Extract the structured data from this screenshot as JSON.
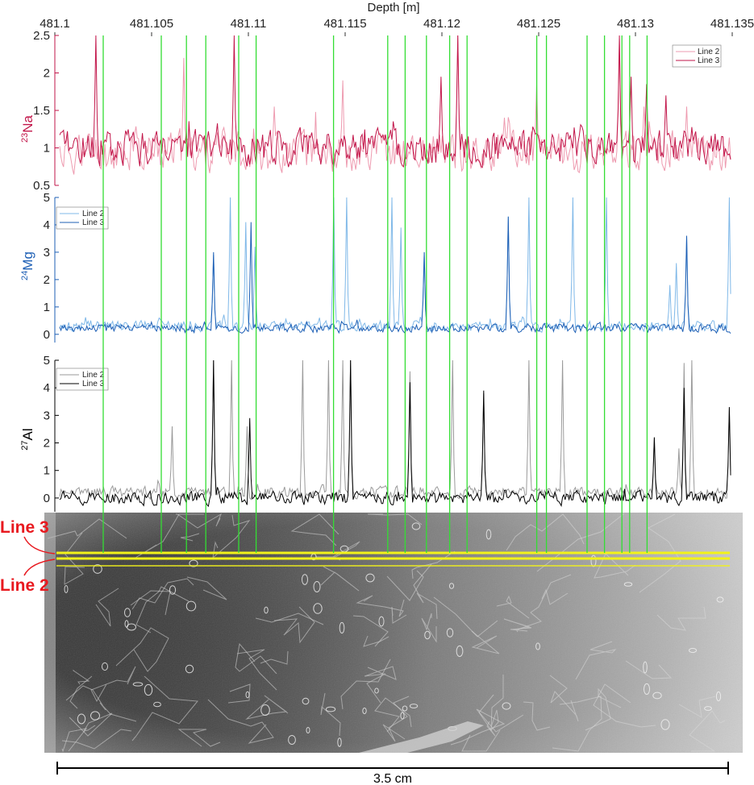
{
  "colors": {
    "na_line2": "#ee9bb0",
    "na_line3": "#c2164a",
    "mg_line2": "#7fb8e8",
    "mg_line3": "#1d5fb5",
    "al_line2": "#9a9a9a",
    "al_line3": "#000000",
    "event_lines": "#33dd33",
    "laser_tracks": "#f2f21a",
    "callout": "#e8191f"
  },
  "image_panel": {
    "description": "ice-core thin section with grain boundaries and bubbles",
    "line_labels": [
      "Line 3",
      "Line 2"
    ]
  },
  "scale_bar": {
    "label": "3.5 cm"
  },
  "chart_data": [
    {
      "type": "line",
      "title": "",
      "xlabel": "Depth [m]",
      "ylabel_main": "Na",
      "ylabel_sup": "23",
      "xlim": [
        481.1,
        481.135
      ],
      "ylim": [
        0.5,
        2.5
      ],
      "x_ticks": [
        "481.1",
        "481.105",
        "481.11",
        "481.115",
        "481.12",
        "481.125",
        "481.13",
        "481.135"
      ],
      "y_ticks": [
        "0.5",
        "1",
        "1.5",
        "2",
        "2.5"
      ],
      "y_tick_values": [
        0.5,
        1,
        1.5,
        2,
        2.5
      ],
      "legend": [
        "Line 2",
        "Line 3"
      ],
      "legend_position": "top-right",
      "series": [
        {
          "name": "Line 2",
          "baseline": 0.95,
          "noise": 0.17,
          "spikes": [
            [
              481.1065,
              2.2
            ],
            [
              481.1112,
              1.55
            ],
            [
              481.1148,
              1.9
            ],
            [
              481.1208,
              2.5
            ],
            [
              481.1249,
              1.85
            ],
            [
              481.1292,
              2.45
            ],
            [
              481.1305,
              1.55
            ],
            [
              481.1327,
              1.55
            ]
          ]
        },
        {
          "name": "Line 3",
          "baseline": 1.0,
          "noise": 0.14,
          "spikes": [
            [
              481.1019,
              2.5
            ],
            [
              481.1091,
              2.5
            ],
            [
              481.1199,
              1.95
            ],
            [
              481.1208,
              2.5
            ],
            [
              481.1292,
              2.5
            ],
            [
              481.1298,
              1.95
            ],
            [
              481.1306,
              1.85
            ],
            [
              481.1316,
              1.7
            ]
          ]
        }
      ]
    },
    {
      "type": "line",
      "title": "",
      "ylabel_main": "Mg",
      "ylabel_sup": "24",
      "xlim": [
        481.1,
        481.135
      ],
      "ylim": [
        -0.3,
        5
      ],
      "y_ticks": [
        "0",
        "1",
        "2",
        "3",
        "4",
        "5"
      ],
      "y_tick_values": [
        0,
        1,
        2,
        3,
        4,
        5
      ],
      "legend": [
        "Line 2",
        "Line 3"
      ],
      "legend_position": "top-left",
      "series": [
        {
          "name": "Line 2",
          "baseline": 0.3,
          "noise": 0.12,
          "spikes": [
            [
              481.108,
              2.9
            ],
            [
              481.1089,
              5.0
            ],
            [
              481.1097,
              4.1
            ],
            [
              481.1102,
              3.2
            ],
            [
              481.1143,
              5.0
            ],
            [
              481.115,
              5.0
            ],
            [
              481.1173,
              5.0
            ],
            [
              481.1178,
              3.9
            ],
            [
              481.119,
              3.0
            ],
            [
              481.1234,
              4.3
            ],
            [
              481.1245,
              5.0
            ],
            [
              481.1268,
              5.0
            ],
            [
              481.1285,
              5.0
            ],
            [
              481.1318,
              1.8
            ],
            [
              481.1322,
              2.6
            ],
            [
              481.1327,
              3.6
            ],
            [
              481.1349,
              5.0
            ]
          ]
        },
        {
          "name": "Line 3",
          "baseline": 0.22,
          "noise": 0.1,
          "spikes": [
            [
              481.108,
              3.0
            ],
            [
              481.11,
              4.1
            ],
            [
              481.119,
              3.0
            ],
            [
              481.1234,
              4.3
            ],
            [
              481.1327,
              3.6
            ]
          ]
        }
      ]
    },
    {
      "type": "line",
      "title": "",
      "ylabel_main": "Al",
      "ylabel_sup": "27",
      "xlim": [
        481.1,
        481.135
      ],
      "ylim": [
        -0.5,
        5
      ],
      "y_ticks": [
        "0",
        "1",
        "2",
        "3",
        "4",
        "5"
      ],
      "y_tick_values": [
        0,
        1,
        2,
        3,
        4,
        5
      ],
      "legend": [
        "Line 2",
        "Line 3"
      ],
      "legend_position": "top-left",
      "series": [
        {
          "name": "Line 2",
          "baseline": 0.2,
          "noise": 0.13,
          "spikes": [
            [
              481.1059,
              2.6
            ],
            [
              481.108,
              5.0
            ],
            [
              481.109,
              5.0
            ],
            [
              481.1098,
              2.6
            ],
            [
              481.1127,
              5.0
            ],
            [
              481.114,
              5.0
            ],
            [
              481.1148,
              5.0
            ],
            [
              481.1152,
              5.0
            ],
            [
              481.1183,
              4.6
            ],
            [
              481.1205,
              5.0
            ],
            [
              481.1221,
              3.8
            ],
            [
              481.1245,
              5.0
            ],
            [
              481.1262,
              5.0
            ],
            [
              481.131,
              2.2
            ],
            [
              481.1323,
              1.8
            ],
            [
              481.1326,
              4.9
            ],
            [
              481.133,
              5.0
            ],
            [
              481.1349,
              3.3
            ]
          ]
        },
        {
          "name": "Line 3",
          "baseline": 0.0,
          "noise": 0.15,
          "spikes": [
            [
              481.108,
              5.0
            ],
            [
              481.1099,
              2.9
            ],
            [
              481.1152,
              5.0
            ],
            [
              481.1183,
              4.2
            ],
            [
              481.1221,
              3.9
            ],
            [
              481.131,
              2.2
            ],
            [
              481.1326,
              4.0
            ],
            [
              481.1349,
              3.3
            ]
          ]
        }
      ]
    }
  ],
  "event_depths": [
    481.1025,
    481.1055,
    481.1068,
    481.1078,
    481.1095,
    481.1104,
    481.1144,
    481.1172,
    481.1181,
    481.1192,
    481.1204,
    481.1213,
    481.1249,
    481.1254,
    481.1275,
    481.1284,
    481.1293,
    481.1297,
    481.1306
  ]
}
